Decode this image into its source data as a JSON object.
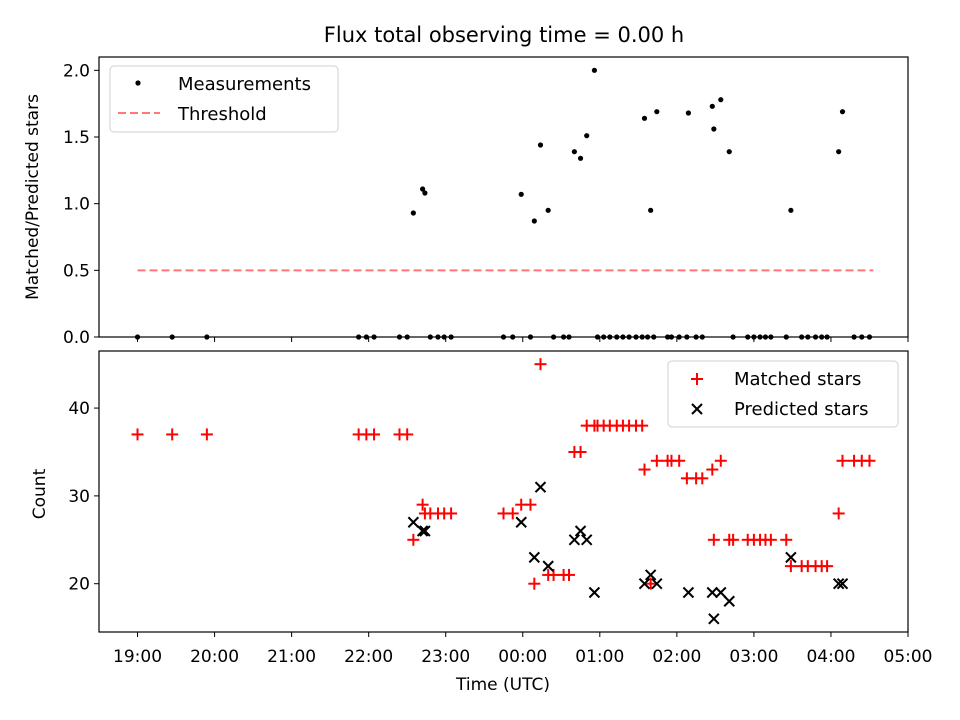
{
  "chart_data": [
    {
      "type": "scatter",
      "title": "Flux total observing time = 0.00 h",
      "xlabel": "",
      "ylabel": "Matched/Predicted stars",
      "x_unit": "time_utc_hours_continuing_past_midnight",
      "xlim": [
        18.5,
        29.0
      ],
      "ylim": [
        0.0,
        2.1
      ],
      "yticks": [
        0.0,
        0.5,
        1.0,
        1.5,
        2.0
      ],
      "ytick_labels": [
        "0.0",
        "0.5",
        "1.0",
        "1.5",
        "2.0"
      ],
      "legend_position": "top-left",
      "legend": [
        {
          "label": "Measurements",
          "marker": "dot",
          "color": "#000000"
        },
        {
          "label": "Threshold",
          "marker": "dashed-line",
          "color": "#ff7777"
        }
      ],
      "threshold": {
        "name": "Threshold",
        "y": 0.5,
        "x_start": 19.0,
        "x_end": 28.55
      },
      "series": [
        {
          "name": "Measurements",
          "color": "#000000",
          "points": [
            [
              19.0,
              0.0
            ],
            [
              19.45,
              0.0
            ],
            [
              19.9,
              0.0
            ],
            [
              21.87,
              0.0
            ],
            [
              21.97,
              0.0
            ],
            [
              22.07,
              0.0
            ],
            [
              22.4,
              0.0
            ],
            [
              22.5,
              0.0
            ],
            [
              22.58,
              0.93
            ],
            [
              22.7,
              1.11
            ],
            [
              22.73,
              1.08
            ],
            [
              22.8,
              0.0
            ],
            [
              22.9,
              0.0
            ],
            [
              22.98,
              0.0
            ],
            [
              23.07,
              0.0
            ],
            [
              23.75,
              0.0
            ],
            [
              23.87,
              0.0
            ],
            [
              23.98,
              1.07
            ],
            [
              24.1,
              0.0
            ],
            [
              24.15,
              0.87
            ],
            [
              24.23,
              1.44
            ],
            [
              24.33,
              0.95
            ],
            [
              24.4,
              0.0
            ],
            [
              24.53,
              0.0
            ],
            [
              24.6,
              0.0
            ],
            [
              24.67,
              1.39
            ],
            [
              24.75,
              1.34
            ],
            [
              24.83,
              1.51
            ],
            [
              24.93,
              2.0
            ],
            [
              24.97,
              0.0
            ],
            [
              25.05,
              0.0
            ],
            [
              25.13,
              0.0
            ],
            [
              25.22,
              0.0
            ],
            [
              25.3,
              0.0
            ],
            [
              25.38,
              0.0
            ],
            [
              25.47,
              0.0
            ],
            [
              25.55,
              0.0
            ],
            [
              25.58,
              1.64
            ],
            [
              25.62,
              0.0
            ],
            [
              25.66,
              0.95
            ],
            [
              25.7,
              0.0
            ],
            [
              25.74,
              1.69
            ],
            [
              25.88,
              0.0
            ],
            [
              25.93,
              0.0
            ],
            [
              26.03,
              0.0
            ],
            [
              26.13,
              0.0
            ],
            [
              26.15,
              1.68
            ],
            [
              26.25,
              0.0
            ],
            [
              26.33,
              0.0
            ],
            [
              26.46,
              1.73
            ],
            [
              26.48,
              1.56
            ],
            [
              26.57,
              1.78
            ],
            [
              26.68,
              1.39
            ],
            [
              26.73,
              0.0
            ],
            [
              26.92,
              0.0
            ],
            [
              27.0,
              0.0
            ],
            [
              27.08,
              0.0
            ],
            [
              27.15,
              0.0
            ],
            [
              27.22,
              0.0
            ],
            [
              27.42,
              0.0
            ],
            [
              27.48,
              0.95
            ],
            [
              27.62,
              0.0
            ],
            [
              27.7,
              0.0
            ],
            [
              27.8,
              0.0
            ],
            [
              27.88,
              0.0
            ],
            [
              27.95,
              0.0
            ],
            [
              28.1,
              1.39
            ],
            [
              28.15,
              1.69
            ],
            [
              28.3,
              0.0
            ],
            [
              28.4,
              0.0
            ],
            [
              28.5,
              0.0
            ]
          ]
        }
      ]
    },
    {
      "type": "scatter",
      "title": "",
      "xlabel": "Time (UTC)",
      "ylabel": "Count",
      "x_unit": "time_utc_hours_continuing_past_midnight",
      "xlim": [
        18.5,
        29.0
      ],
      "ylim": [
        14.5,
        46.5
      ],
      "yticks": [
        20,
        30,
        40
      ],
      "ytick_labels": [
        "20",
        "30",
        "40"
      ],
      "xticks": [
        19,
        20,
        21,
        22,
        23,
        24,
        25,
        26,
        27,
        28,
        29
      ],
      "xtick_labels": [
        "19:00",
        "20:00",
        "21:00",
        "22:00",
        "23:00",
        "00:00",
        "01:00",
        "02:00",
        "03:00",
        "04:00",
        "05:00"
      ],
      "legend_position": "top-right",
      "legend": [
        {
          "label": "Matched stars",
          "marker": "plus",
          "color": "#ff0000"
        },
        {
          "label": "Predicted stars",
          "marker": "x",
          "color": "#000000"
        }
      ],
      "series": [
        {
          "name": "Matched stars",
          "color": "#ff0000",
          "points": [
            [
              19.0,
              37
            ],
            [
              19.45,
              37
            ],
            [
              19.9,
              37
            ],
            [
              21.87,
              37
            ],
            [
              21.97,
              37
            ],
            [
              22.07,
              37
            ],
            [
              22.4,
              37
            ],
            [
              22.5,
              37
            ],
            [
              22.58,
              25
            ],
            [
              22.7,
              29
            ],
            [
              22.73,
              28
            ],
            [
              22.8,
              28
            ],
            [
              22.9,
              28
            ],
            [
              22.98,
              28
            ],
            [
              23.07,
              28
            ],
            [
              23.75,
              28
            ],
            [
              23.87,
              28
            ],
            [
              23.98,
              29
            ],
            [
              24.1,
              29
            ],
            [
              24.15,
              20
            ],
            [
              24.23,
              45
            ],
            [
              24.33,
              21
            ],
            [
              24.4,
              21
            ],
            [
              24.53,
              21
            ],
            [
              24.6,
              21
            ],
            [
              24.67,
              35
            ],
            [
              24.75,
              35
            ],
            [
              24.83,
              38
            ],
            [
              24.93,
              38
            ],
            [
              24.97,
              38
            ],
            [
              25.05,
              38
            ],
            [
              25.13,
              38
            ],
            [
              25.22,
              38
            ],
            [
              25.3,
              38
            ],
            [
              25.38,
              38
            ],
            [
              25.47,
              38
            ],
            [
              25.55,
              38
            ],
            [
              25.58,
              33
            ],
            [
              25.66,
              20
            ],
            [
              25.74,
              34
            ],
            [
              25.88,
              34
            ],
            [
              25.93,
              34
            ],
            [
              26.03,
              34
            ],
            [
              26.13,
              32
            ],
            [
              26.25,
              32
            ],
            [
              26.33,
              32
            ],
            [
              26.46,
              33
            ],
            [
              26.48,
              25
            ],
            [
              26.57,
              34
            ],
            [
              26.68,
              25
            ],
            [
              26.73,
              25
            ],
            [
              26.92,
              25
            ],
            [
              27.0,
              25
            ],
            [
              27.08,
              25
            ],
            [
              27.15,
              25
            ],
            [
              27.22,
              25
            ],
            [
              27.42,
              25
            ],
            [
              27.48,
              22
            ],
            [
              27.62,
              22
            ],
            [
              27.7,
              22
            ],
            [
              27.8,
              22
            ],
            [
              27.88,
              22
            ],
            [
              27.95,
              22
            ],
            [
              28.1,
              28
            ],
            [
              28.15,
              34
            ],
            [
              28.3,
              34
            ],
            [
              28.4,
              34
            ],
            [
              28.5,
              34
            ]
          ]
        },
        {
          "name": "Predicted stars",
          "color": "#000000",
          "points": [
            [
              22.58,
              27
            ],
            [
              22.7,
              26
            ],
            [
              22.73,
              26
            ],
            [
              23.98,
              27
            ],
            [
              24.15,
              23
            ],
            [
              24.23,
              31
            ],
            [
              24.33,
              22
            ],
            [
              24.67,
              25
            ],
            [
              24.75,
              26
            ],
            [
              24.83,
              25
            ],
            [
              24.93,
              19
            ],
            [
              25.58,
              20
            ],
            [
              25.66,
              21
            ],
            [
              25.74,
              20
            ],
            [
              26.15,
              19
            ],
            [
              26.46,
              19
            ],
            [
              26.48,
              16
            ],
            [
              26.57,
              19
            ],
            [
              26.68,
              18
            ],
            [
              27.48,
              23
            ],
            [
              28.1,
              20
            ],
            [
              28.15,
              20
            ]
          ]
        }
      ]
    }
  ]
}
